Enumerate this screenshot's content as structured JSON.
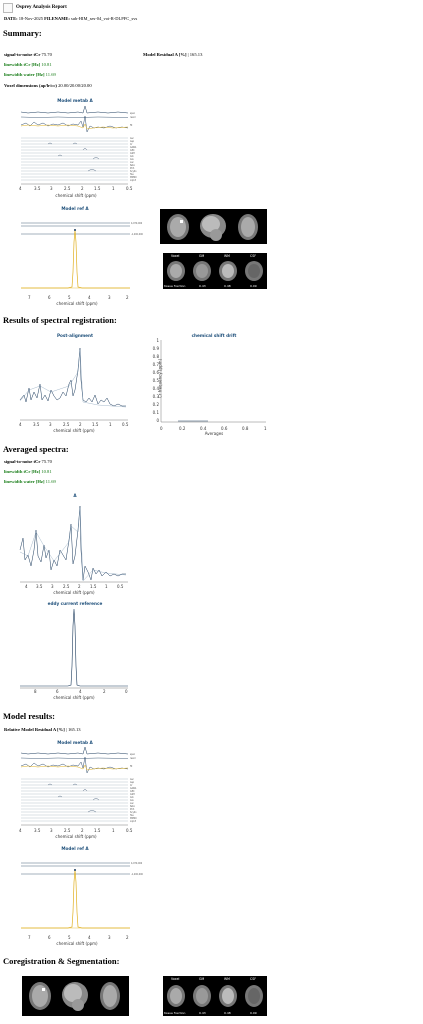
{
  "report": {
    "title": "Osprey Analysis Report",
    "date_label": "DATE:",
    "date_value": "18-Nov-2025",
    "filename_label": "FILENAME:",
    "filename_value": "sub-HIM_ses-04_voi-R-DLPFC_svs"
  },
  "summary": {
    "heading": "Summary:",
    "snr_label": "signal-to-noise tCr",
    "snr_value": "75.70",
    "residual_label": "Model Residual A [%]",
    "residual_value": "165.13",
    "lw_tcr_label": "linewidth tCr [Hz]",
    "lw_tcr_value": "10.81",
    "lw_water_label": "linewidth water [Hz]",
    "lw_water_value": "11.69",
    "voxel_label": "Voxel dimensions (ap/lr/cc)",
    "voxel_value": "20.00/20.00/20.00"
  },
  "plots": {
    "model_metab_title": "Model metab A",
    "model_ref_title": "Model ref A",
    "post_alignment_title": "Post-alignment",
    "drift_title": "chemical shift drift",
    "averaged_title": "A",
    "eddy_title": "eddy current reference",
    "xlabel_ppm": "chemical shift (ppm)",
    "drift_ylabel": "Cr frequency (ppm)",
    "drift_xlabel": "Averages",
    "metab_ticks": [
      "4",
      "3.5",
      "3",
      "2.5",
      "2",
      "1.5",
      "1",
      "0.5"
    ],
    "ref_ticks": [
      "7",
      "6",
      "5",
      "4",
      "3",
      "2"
    ],
    "eddy_ticks": [
      "8",
      "6",
      "4",
      "2",
      "0"
    ],
    "drift_yticks": [
      "1",
      "0.9",
      "0.8",
      "0.7",
      "0.6",
      "0.5",
      "0.4",
      "0.3",
      "0.2",
      "0.1",
      "0"
    ],
    "drift_xticks": [
      "0",
      "0.2",
      "0.4",
      "0.6",
      "0.8",
      "1"
    ],
    "seg_labels": [
      "Voxel",
      "GM",
      "WM",
      "CSF"
    ],
    "seg_fraction_label": "tissue fraction",
    "seg_values": [
      "0.43",
      "0.48",
      "0.09"
    ]
  },
  "sections": {
    "registration": "Results of spectral registration:",
    "averaged": "Averaged spectra:",
    "model": "Model results:",
    "model_residual_label": "Relative Model Residual A [%]",
    "model_residual_value": "165.13",
    "coreg": "Coregistration & Segmentation:"
  },
  "colors": {
    "data": "#1b3a5c",
    "fit": "#e0b020",
    "green_text": "#137a13",
    "title_blue": "#1e4f7a"
  }
}
